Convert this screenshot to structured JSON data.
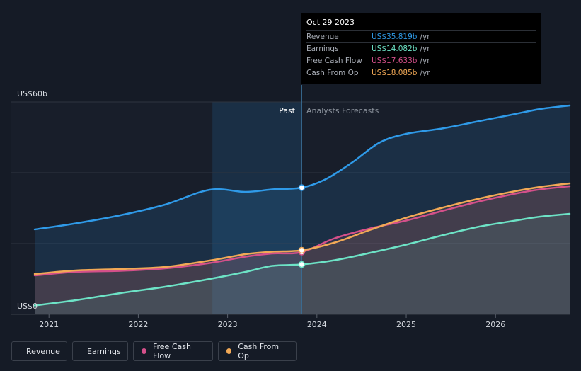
{
  "tooltip": {
    "date": "Oct 29 2023",
    "rows": [
      {
        "label": "Revenue",
        "value": "US$35.819b",
        "unit": "/yr",
        "color": "#2f9ae8"
      },
      {
        "label": "Earnings",
        "value": "US$14.082b",
        "unit": "/yr",
        "color": "#6de3c6"
      },
      {
        "label": "Free Cash Flow",
        "value": "US$17.633b",
        "unit": "/yr",
        "color": "#d4508a"
      },
      {
        "label": "Cash From Op",
        "value": "US$18.085b",
        "unit": "/yr",
        "color": "#f2a956"
      }
    ]
  },
  "legend": [
    {
      "label": "Revenue",
      "color": "#2f9ae8"
    },
    {
      "label": "Earnings",
      "color": "#6de3c6"
    },
    {
      "label": "Free Cash Flow",
      "color": "#d4508a"
    },
    {
      "label": "Cash From Op",
      "color": "#f2a956"
    }
  ],
  "chart_data": {
    "type": "line",
    "y_top_label": "US$60b",
    "y_bottom_label": "US$0",
    "ylim": [
      0,
      60
    ],
    "xlim": [
      2020.84,
      2026.83
    ],
    "x_ticks": [
      2021,
      2022,
      2023,
      2024,
      2025,
      2026
    ],
    "past_label": "Past",
    "forecast_label": "Analysts Forecasts",
    "divider_x": 2023.83,
    "past_shade_start": 2022.83,
    "grid": true,
    "series": [
      {
        "name": "Revenue",
        "color": "#2f9ae8",
        "x": [
          2020.84,
          2021.3,
          2021.8,
          2022.3,
          2022.8,
          2023.2,
          2023.5,
          2023.83,
          2024.1,
          2024.4,
          2024.7,
          2025.0,
          2025.4,
          2025.8,
          2026.2,
          2026.5,
          2026.83
        ],
        "y": [
          24,
          25.7,
          28,
          31,
          35.2,
          34.6,
          35.3,
          35.8,
          38.2,
          43,
          48.5,
          51,
          52.5,
          54.5,
          56.5,
          58,
          59
        ]
      },
      {
        "name": "Earnings",
        "color": "#6de3c6",
        "x": [
          2020.84,
          2021.3,
          2021.8,
          2022.3,
          2022.8,
          2023.2,
          2023.5,
          2023.83,
          2024.2,
          2024.6,
          2025.0,
          2025.4,
          2025.8,
          2026.2,
          2026.5,
          2026.83
        ],
        "y": [
          2.5,
          4,
          6,
          7.8,
          10,
          12,
          13.7,
          14.1,
          15.3,
          17.4,
          19.7,
          22.3,
          24.7,
          26.4,
          27.6,
          28.4
        ]
      },
      {
        "name": "Free Cash Flow",
        "color": "#d4508a",
        "x": [
          2020.84,
          2021.3,
          2021.8,
          2022.3,
          2022.8,
          2023.2,
          2023.5,
          2023.83,
          2024.2,
          2024.6,
          2025.0,
          2025.4,
          2025.8,
          2026.2,
          2026.5,
          2026.83
        ],
        "y": [
          11,
          12,
          12.3,
          13,
          14.5,
          16.3,
          17.2,
          17.6,
          21.5,
          24.3,
          26.5,
          29.2,
          31.8,
          34,
          35.3,
          36.2
        ]
      },
      {
        "name": "Cash From Op",
        "color": "#f2a956",
        "x": [
          2020.84,
          2021.3,
          2021.8,
          2022.3,
          2022.8,
          2023.2,
          2023.5,
          2023.83,
          2024.2,
          2024.6,
          2025.0,
          2025.4,
          2025.8,
          2026.2,
          2026.5,
          2026.83
        ],
        "y": [
          11.4,
          12.4,
          12.8,
          13.4,
          15.2,
          17.0,
          17.7,
          18.1,
          20.3,
          23.9,
          27.3,
          30.1,
          32.6,
          34.7,
          36.0,
          37.0
        ]
      }
    ]
  }
}
